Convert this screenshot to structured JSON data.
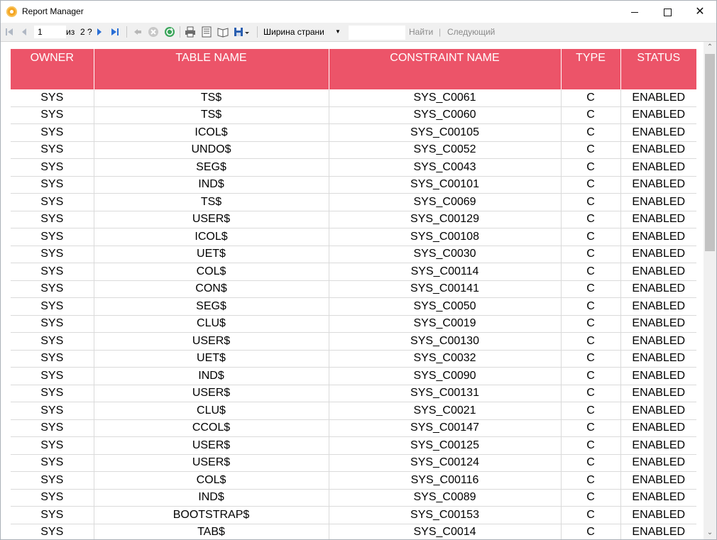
{
  "window": {
    "title": "Report Manager"
  },
  "toolbar": {
    "page_value": "1",
    "page_of": "из",
    "page_total": "2 ?",
    "zoom": "Ширина страни",
    "find_label": "Найти",
    "next_label": "Следующий",
    "divider": "|"
  },
  "table": {
    "headers": [
      "OWNER",
      "TABLE NAME",
      "CONSTRAINT NAME",
      "TYPE",
      "STATUS"
    ],
    "rows": [
      [
        "SYS",
        "TS$",
        "SYS_C0061",
        "C",
        "ENABLED"
      ],
      [
        "SYS",
        "TS$",
        "SYS_C0060",
        "C",
        "ENABLED"
      ],
      [
        "SYS",
        "ICOL$",
        "SYS_C00105",
        "C",
        "ENABLED"
      ],
      [
        "SYS",
        "UNDO$",
        "SYS_C0052",
        "C",
        "ENABLED"
      ],
      [
        "SYS",
        "SEG$",
        "SYS_C0043",
        "C",
        "ENABLED"
      ],
      [
        "SYS",
        "IND$",
        "SYS_C00101",
        "C",
        "ENABLED"
      ],
      [
        "SYS",
        "TS$",
        "SYS_C0069",
        "C",
        "ENABLED"
      ],
      [
        "SYS",
        "USER$",
        "SYS_C00129",
        "C",
        "ENABLED"
      ],
      [
        "SYS",
        "ICOL$",
        "SYS_C00108",
        "C",
        "ENABLED"
      ],
      [
        "SYS",
        "UET$",
        "SYS_C0030",
        "C",
        "ENABLED"
      ],
      [
        "SYS",
        "COL$",
        "SYS_C00114",
        "C",
        "ENABLED"
      ],
      [
        "SYS",
        "CON$",
        "SYS_C00141",
        "C",
        "ENABLED"
      ],
      [
        "SYS",
        "SEG$",
        "SYS_C0050",
        "C",
        "ENABLED"
      ],
      [
        "SYS",
        "CLU$",
        "SYS_C0019",
        "C",
        "ENABLED"
      ],
      [
        "SYS",
        "USER$",
        "SYS_C00130",
        "C",
        "ENABLED"
      ],
      [
        "SYS",
        "UET$",
        "SYS_C0032",
        "C",
        "ENABLED"
      ],
      [
        "SYS",
        "IND$",
        "SYS_C0090",
        "C",
        "ENABLED"
      ],
      [
        "SYS",
        "USER$",
        "SYS_C00131",
        "C",
        "ENABLED"
      ],
      [
        "SYS",
        "CLU$",
        "SYS_C0021",
        "C",
        "ENABLED"
      ],
      [
        "SYS",
        "CCOL$",
        "SYS_C00147",
        "C",
        "ENABLED"
      ],
      [
        "SYS",
        "USER$",
        "SYS_C00125",
        "C",
        "ENABLED"
      ],
      [
        "SYS",
        "USER$",
        "SYS_C00124",
        "C",
        "ENABLED"
      ],
      [
        "SYS",
        "COL$",
        "SYS_C00116",
        "C",
        "ENABLED"
      ],
      [
        "SYS",
        "IND$",
        "SYS_C0089",
        "C",
        "ENABLED"
      ],
      [
        "SYS",
        "BOOTSTRAP$",
        "SYS_C00153",
        "C",
        "ENABLED"
      ],
      [
        "SYS",
        "TAB$",
        "SYS_C0014",
        "C",
        "ENABLED"
      ]
    ]
  },
  "colors": {
    "header_bg": "#ec5469",
    "header_text": "#ffffff",
    "grid": "#dadada"
  },
  "icons": [
    "app-icon",
    "first-page-icon",
    "prev-page-icon",
    "next-page-icon",
    "last-page-icon",
    "back-icon",
    "stop-icon",
    "refresh-icon",
    "print-icon",
    "print-layout-icon",
    "page-setup-icon",
    "export-icon"
  ]
}
